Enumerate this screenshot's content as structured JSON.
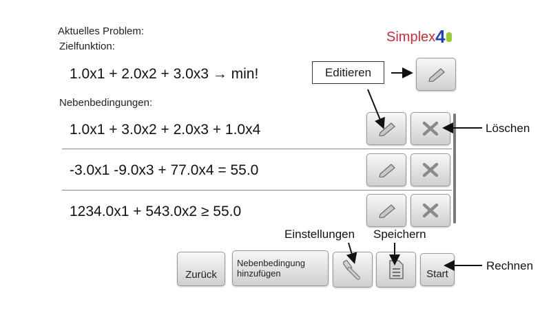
{
  "header": {
    "current_problem_label": "Aktuelles Problem:",
    "objective_label": "Zielfunktion:"
  },
  "logo": {
    "text": "Simplex",
    "number": "4"
  },
  "objective": {
    "expression": "1.0x1 + 2.0x2 + 3.0x3 → min!"
  },
  "constraints_label": "Nebenbedingungen:",
  "constraints": [
    {
      "expression": "1.0x1 + 3.0x2 + 2.0x3 + 1.0x4"
    },
    {
      "expression": "-3.0x1 -9.0x3 + 77.0x4 = 55.0"
    },
    {
      "expression": "1234.0x1 + 543.0x2 ≥ 55.0"
    }
  ],
  "toolbar": {
    "back_label": "Zurück",
    "add_constraint_label": "Nebenbedingung hinzufügen",
    "start_label": "Start"
  },
  "annotations": {
    "edit": "Editieren",
    "delete": "Löschen",
    "settings": "Einstellungen",
    "save": "Speichern",
    "compute": "Rechnen"
  },
  "icons": {
    "edit": "pencil-icon",
    "delete": "x-icon",
    "settings": "wrench-icon",
    "save": "document-icon"
  }
}
